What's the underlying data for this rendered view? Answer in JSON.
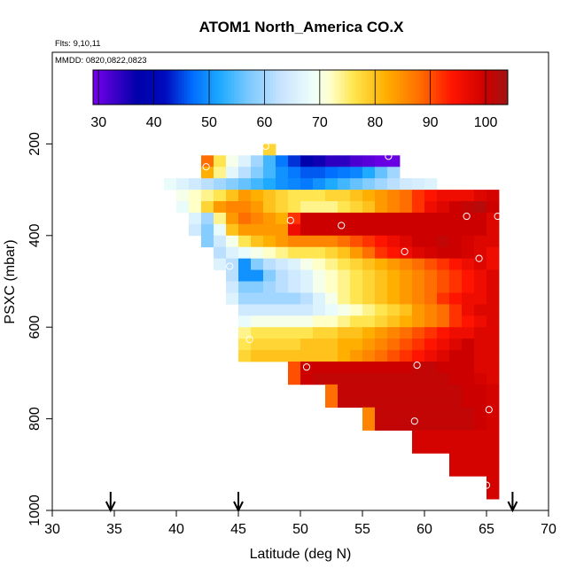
{
  "chart_data": {
    "type": "heatmap",
    "title": "ATOM1 North_America CO.X",
    "flights_label": "Flts: 9,10,11",
    "dates_label": "MMDD: 0820,0822,0823",
    "xlabel": "Latitude (deg N)",
    "ylabel": "PSXC (mbar)",
    "xlim": [
      30,
      70
    ],
    "ylim": [
      1000,
      0
    ],
    "xticks": [
      "30",
      "35",
      "40",
      "45",
      "50",
      "55",
      "60",
      "65",
      "70"
    ],
    "yticks": [
      "200",
      "400",
      "600",
      "800",
      "1000"
    ],
    "colorbar": {
      "range": [
        29,
        104
      ],
      "ticks": [
        "30",
        "40",
        "50",
        "60",
        "70",
        "80",
        "90",
        "100"
      ]
    },
    "bin_width_deg": 1,
    "bin_height_mbar": 25,
    "rows": [
      {
        "p": 212.5,
        "lon": 47,
        "vals": [
          78
        ]
      },
      {
        "p": 237.5,
        "lon": 42,
        "vals": [
          88,
          76,
          70,
          66,
          60,
          54,
          48,
          44,
          38,
          36,
          34,
          34,
          32,
          31,
          30,
          30
        ]
      },
      {
        "p": 262.5,
        "lon": 42,
        "vals": [
          82,
          74,
          67,
          62,
          58,
          54,
          50,
          48,
          46,
          46,
          47,
          48,
          49,
          52,
          56,
          60
        ]
      },
      {
        "p": 287.5,
        "lon": 39,
        "vals": [
          68,
          66,
          64,
          62,
          60,
          58,
          56,
          54,
          52,
          50,
          49,
          48,
          50,
          52,
          54,
          56,
          58,
          60,
          62,
          64,
          65,
          66
        ]
      },
      {
        "p": 312.5,
        "lon": 40,
        "vals": [
          70,
          72,
          74,
          76,
          80,
          84,
          82,
          80,
          78,
          76,
          76,
          76,
          78,
          78,
          80,
          82,
          84,
          86,
          88,
          92,
          94,
          96,
          96,
          96,
          98,
          99
        ]
      },
      {
        "p": 337.5,
        "lon": 40,
        "vals": [
          68,
          72,
          78,
          84,
          86,
          86,
          84,
          80,
          78,
          76,
          74,
          74,
          74,
          76,
          78,
          80,
          84,
          86,
          88,
          92,
          96,
          98,
          100,
          101,
          102,
          100
        ]
      },
      {
        "p": 362.5,
        "lon": 41,
        "vals": [
          66,
          60,
          74,
          84,
          88,
          86,
          84,
          82,
          92,
          100,
          100,
          100,
          100,
          100,
          100,
          100,
          100,
          100,
          100,
          100,
          100,
          100,
          100,
          100,
          98
        ]
      },
      {
        "p": 387.5,
        "lon": 41,
        "vals": [
          64,
          58,
          68,
          80,
          84,
          84,
          84,
          84,
          96,
          100,
          100,
          100,
          100,
          100,
          100,
          100,
          100,
          100,
          100,
          100,
          100,
          100,
          100,
          100,
          98
        ]
      },
      {
        "p": 412.5,
        "lon": 42,
        "vals": [
          58,
          64,
          70,
          76,
          80,
          82,
          84,
          86,
          86,
          86,
          86,
          88,
          90,
          92,
          94,
          96,
          98,
          100,
          100,
          101,
          100,
          99,
          98,
          98
        ]
      },
      {
        "p": 437.5,
        "lon": 43,
        "vals": [
          62,
          66,
          68,
          70,
          72,
          74,
          76,
          76,
          76,
          78,
          80,
          84,
          88,
          92,
          94,
          96,
          98,
          99,
          100,
          100,
          99,
          98,
          96
        ]
      },
      {
        "p": 462.5,
        "lon": 43,
        "vals": [
          66,
          62,
          50,
          58,
          62,
          64,
          66,
          70,
          72,
          74,
          76,
          78,
          80,
          82,
          84,
          86,
          88,
          90,
          92,
          94,
          96,
          98,
          96
        ]
      },
      {
        "p": 487.5,
        "lon": 44,
        "vals": [
          62,
          50,
          50,
          58,
          62,
          64,
          66,
          70,
          72,
          74,
          76,
          78,
          80,
          82,
          84,
          86,
          88,
          90,
          92,
          94,
          96,
          98
        ]
      },
      {
        "p": 512.5,
        "lon": 44,
        "vals": [
          64,
          58,
          58,
          60,
          62,
          64,
          66,
          70,
          72,
          74,
          76,
          78,
          80,
          82,
          84,
          86,
          88,
          90,
          92,
          94,
          96,
          98
        ]
      },
      {
        "p": 537.5,
        "lon": 44,
        "vals": [
          66,
          60,
          60,
          60,
          60,
          60,
          62,
          66,
          70,
          74,
          76,
          78,
          80,
          82,
          84,
          86,
          88,
          92,
          94,
          96,
          96,
          98
        ]
      },
      {
        "p": 562.5,
        "lon": 45,
        "vals": [
          64,
          64,
          64,
          64,
          64,
          64,
          66,
          68,
          70,
          72,
          74,
          76,
          78,
          80,
          84,
          86,
          88,
          92,
          96,
          98,
          98
        ]
      },
      {
        "p": 587.5,
        "lon": 45,
        "vals": [
          68,
          70,
          70,
          70,
          70,
          70,
          72,
          72,
          74,
          76,
          76,
          78,
          80,
          82,
          84,
          86,
          88,
          92,
          94,
          96,
          98
        ]
      },
      {
        "p": 612.5,
        "lon": 45,
        "vals": [
          74,
          76,
          76,
          76,
          76,
          76,
          78,
          78,
          80,
          80,
          82,
          84,
          86,
          88,
          90,
          92,
          94,
          96,
          96,
          98,
          98
        ]
      },
      {
        "p": 637.5,
        "lon": 45,
        "vals": [
          76,
          78,
          78,
          78,
          78,
          80,
          80,
          80,
          82,
          82,
          84,
          86,
          88,
          90,
          92,
          94,
          96,
          98,
          100,
          98,
          98
        ]
      },
      {
        "p": 662.5,
        "lon": 45,
        "vals": [
          78,
          80,
          80,
          80,
          80,
          80,
          80,
          80,
          82,
          84,
          86,
          88,
          90,
          92,
          94,
          96,
          98,
          100,
          100,
          98,
          98
        ]
      },
      {
        "p": 687.5,
        "lon": 49,
        "vals": [
          90,
          100,
          100,
          100,
          100,
          100,
          100,
          100,
          100,
          100,
          101,
          101,
          100,
          100,
          100,
          98,
          98
        ]
      },
      {
        "p": 712.5,
        "lon": 49,
        "vals": [
          90,
          100,
          101,
          101,
          101,
          101,
          101,
          101,
          101,
          101,
          101,
          101,
          101,
          100,
          100,
          99,
          98
        ]
      },
      {
        "p": 737.5,
        "lon": 52,
        "vals": [
          88,
          101,
          101,
          101,
          101,
          101,
          101,
          101,
          101,
          101,
          101,
          100,
          100,
          99
        ]
      },
      {
        "p": 762.5,
        "lon": 52,
        "vals": [
          88,
          101,
          101,
          101,
          101,
          101,
          101,
          101,
          101,
          101,
          101,
          100,
          100,
          99
        ]
      },
      {
        "p": 787.5,
        "lon": 55,
        "vals": [
          86,
          101,
          101,
          101,
          101,
          101,
          101,
          101,
          101,
          100,
          99
        ]
      },
      {
        "p": 812.5,
        "lon": 55,
        "vals": [
          86,
          101,
          101,
          101,
          101,
          101,
          101,
          101,
          101,
          100,
          99
        ]
      },
      {
        "p": 837.5,
        "lon": 59,
        "vals": [
          99,
          99,
          99,
          99,
          99,
          99,
          99
        ]
      },
      {
        "p": 862.5,
        "lon": 59,
        "vals": [
          99,
          99,
          99,
          99,
          99,
          99,
          99
        ]
      },
      {
        "p": 887.5,
        "lon": 62,
        "vals": [
          99,
          99,
          99,
          99
        ]
      },
      {
        "p": 912.5,
        "lon": 62,
        "vals": [
          99,
          99,
          99,
          99
        ]
      },
      {
        "p": 937.5,
        "lon": 65,
        "vals": [
          99
        ]
      },
      {
        "p": 962.5,
        "lon": 65,
        "vals": [
          99
        ]
      }
    ],
    "circles": [
      {
        "lat": 47.2,
        "p": 205
      },
      {
        "lat": 51.7,
        "p": 215
      },
      {
        "lat": 57.1,
        "p": 227
      },
      {
        "lat": 42.4,
        "p": 250
      },
      {
        "lat": 49.2,
        "p": 367
      },
      {
        "lat": 53.3,
        "p": 378
      },
      {
        "lat": 63.4,
        "p": 358
      },
      {
        "lat": 65.9,
        "p": 358
      },
      {
        "lat": 58.4,
        "p": 435
      },
      {
        "lat": 64.4,
        "p": 450
      },
      {
        "lat": 44.3,
        "p": 467
      },
      {
        "lat": 45.9,
        "p": 627
      },
      {
        "lat": 50.5,
        "p": 687
      },
      {
        "lat": 59.4,
        "p": 683
      },
      {
        "lat": 59.2,
        "p": 805
      },
      {
        "lat": 65.2,
        "p": 780
      },
      {
        "lat": 65.0,
        "p": 945
      }
    ],
    "arrows_lat": [
      34.7,
      45.0,
      67.1
    ]
  }
}
